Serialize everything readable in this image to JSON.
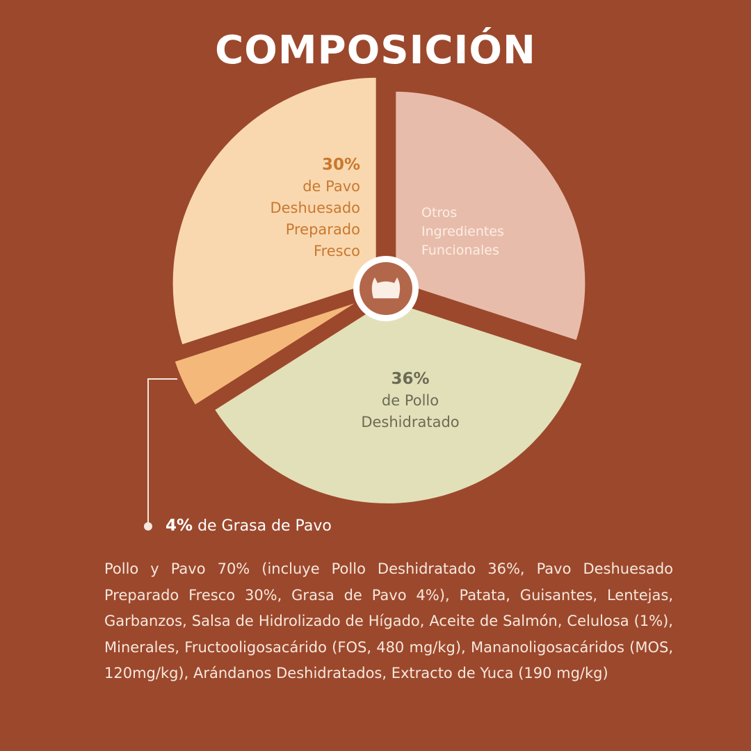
{
  "chart_data": {
    "type": "pie",
    "title": "COMPOSICIÓN",
    "categories": [
      "Otros Ingredientes Funcionales",
      "de Pollo Deshidratado",
      "de Grasa de Pavo",
      "de Pavo Deshuesado Preparado Fresco"
    ],
    "values": [
      30,
      36,
      4,
      30
    ],
    "value_labels": [
      null,
      "36%",
      "4%",
      "30%"
    ],
    "colors": [
      "#e8bcaa",
      "#e2e0b9",
      "#f4b97a",
      "#f9d8b0"
    ],
    "caption": "Pollo y Pavo 70% (incluye Pollo Deshidratado 36%, Pavo Deshuesado Preparado Fresco 30%, Grasa de Pavo 4%), Patata, Guisantes, Lentejas, Garbanzos, Salsa de Hidrolizado de Hígado, Aceite de Salmón, Celulosa (1%), Minerales, Fructooligosacárido (FOS, 480 mg/kg), Mananoligosacáridos (MOS, 120mg/kg), Arándanos Deshidratados, Extracto de Yuca (190 mg/kg)"
  }
}
